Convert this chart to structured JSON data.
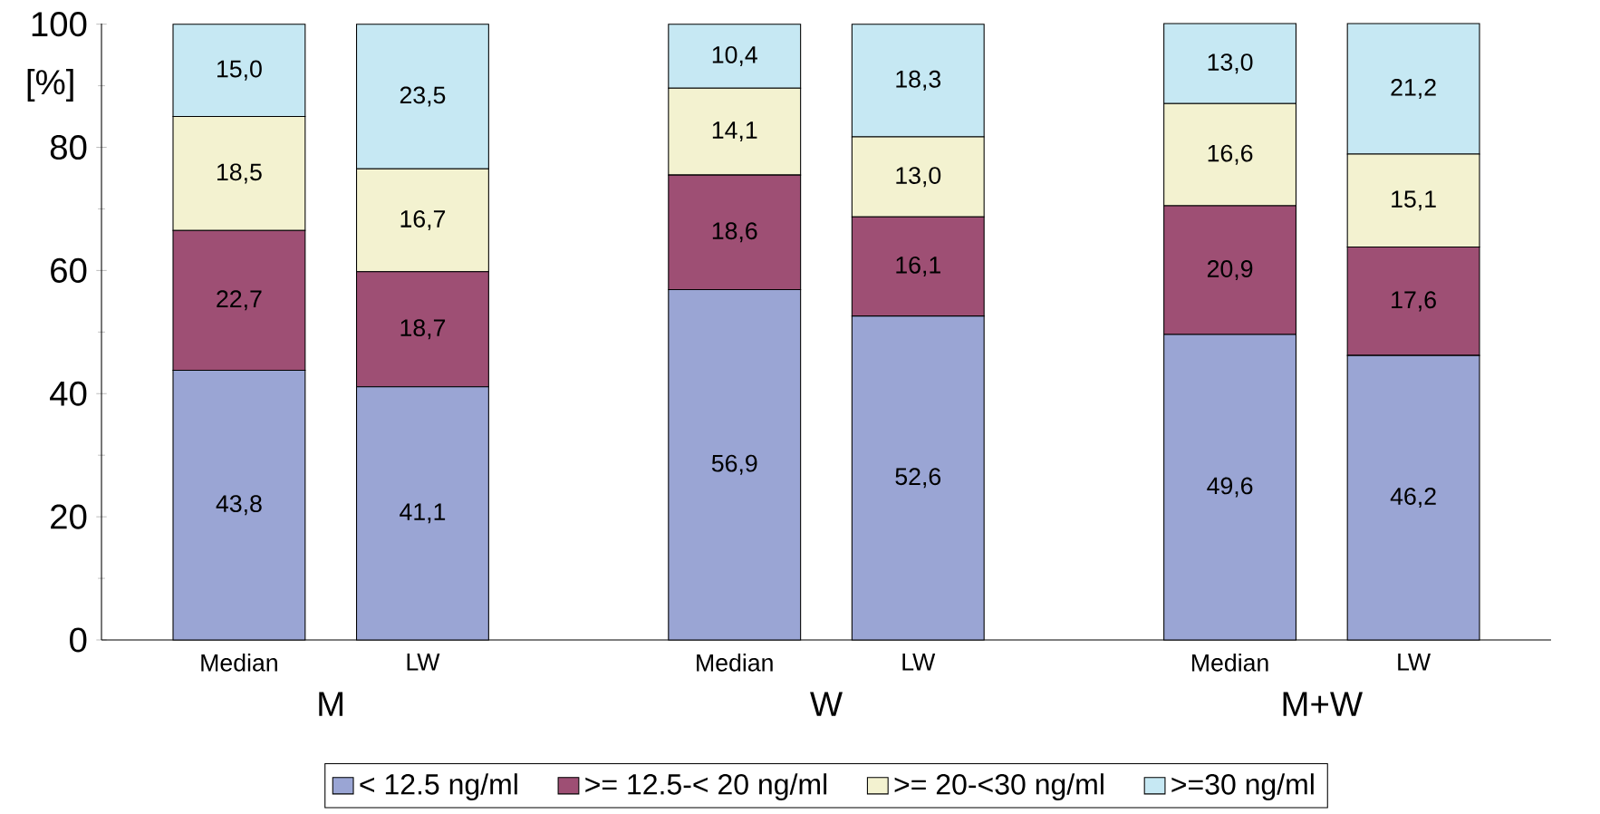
{
  "chart_data": {
    "type": "bar",
    "stacked": true,
    "ylabel": "[%]",
    "categories": [
      "Median",
      "LW",
      "Median",
      "LW",
      "Median",
      "LW"
    ],
    "annotations": [
      "M",
      "W",
      "M+W"
    ],
    "series": [
      {
        "name": "< 12.5 ng/ml",
        "color": "#9aa5d4",
        "values": [
          43.8,
          41.1,
          56.9,
          52.6,
          49.6,
          46.2
        ],
        "value_labels": [
          "43,8",
          "41,1",
          "56,9",
          "52,6",
          "49,6",
          "46,2"
        ]
      },
      {
        "name": ">= 12.5-< 20 ng/ml",
        "color": "#9e4f74",
        "values": [
          22.7,
          18.7,
          18.6,
          16.1,
          20.9,
          17.6
        ],
        "value_labels": [
          "22,7",
          "18,7",
          "18,6",
          "16,1",
          "20,9",
          "17,6"
        ]
      },
      {
        "name": ">= 20-<30 ng/ml",
        "color": "#f3f2d0",
        "values": [
          18.5,
          16.7,
          14.1,
          13.0,
          16.6,
          15.1
        ],
        "value_labels": [
          "18,5",
          "16,7",
          "14,1",
          "13,0",
          "16,6",
          "15,1"
        ]
      },
      {
        "name": ">=30 ng/ml",
        "color": "#c6e8f3",
        "values": [
          15.0,
          23.5,
          10.4,
          18.3,
          13.0,
          21.2
        ],
        "value_labels": [
          "15,0",
          "23,5",
          "10,4",
          "18,3",
          "13,0",
          "21,2"
        ]
      }
    ],
    "ylim": [
      0,
      100.1
    ],
    "yticks": [
      0,
      20,
      40,
      60,
      80,
      100
    ],
    "legend": "bottom",
    "grid": false
  }
}
